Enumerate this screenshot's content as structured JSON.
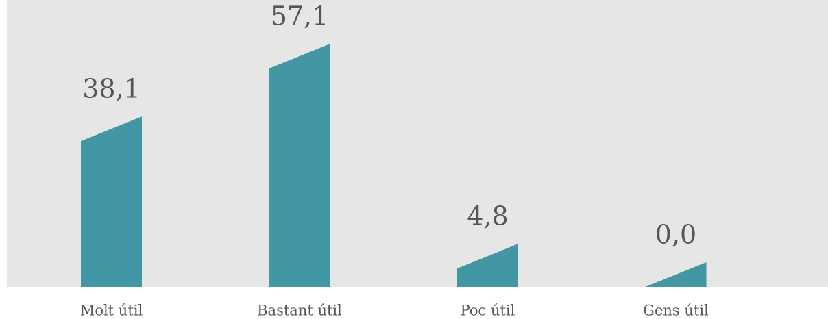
{
  "chart_data": {
    "type": "bar",
    "categories": [
      "Molt útil",
      "Bastant útil",
      "Poc útil",
      "Gens útil"
    ],
    "values": [
      38.1,
      57.1,
      4.8,
      0.0
    ],
    "value_labels": [
      "38,1",
      "57,1",
      "4,8",
      "0,0"
    ],
    "color": "#4397a5",
    "ylim": [
      0,
      75
    ]
  }
}
